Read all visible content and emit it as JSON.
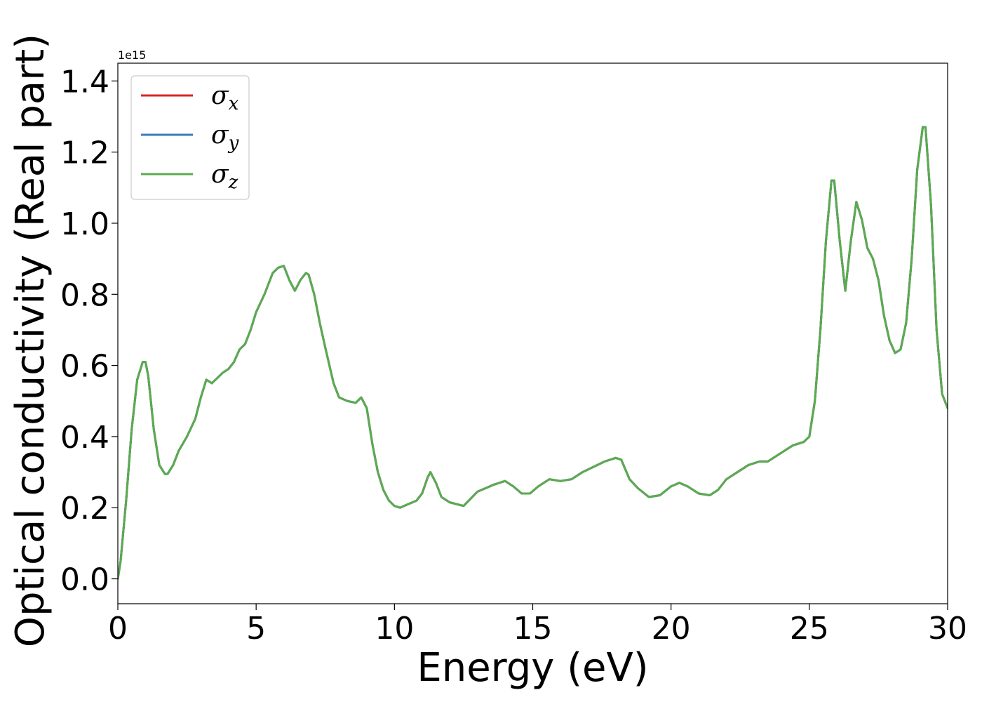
{
  "chart_data": {
    "type": "line",
    "title": "",
    "xlabel": "Energy (eV)",
    "ylabel": "Optical conductivity (Real part)",
    "y_offset_text": "1e15",
    "y_multiplier": 1000000000000000.0,
    "xlim": [
      0,
      30
    ],
    "ylim": [
      -0.07,
      1.45
    ],
    "x_ticks": [
      0,
      5,
      10,
      15,
      20,
      25,
      30
    ],
    "x_tick_labels": [
      "0",
      "5",
      "10",
      "15",
      "20",
      "25",
      "30"
    ],
    "y_ticks": [
      0.0,
      0.2,
      0.4,
      0.6,
      0.8,
      1.0,
      1.2,
      1.4
    ],
    "y_tick_labels": [
      "0.0",
      "0.2",
      "0.4",
      "0.6",
      "0.8",
      "1.0",
      "1.2",
      "1.4"
    ],
    "grid": false,
    "legend": {
      "placement": "top-left",
      "entries": [
        {
          "symbol": "σ",
          "sub": "x",
          "color": "#d62728"
        },
        {
          "symbol": "σ",
          "sub": "y",
          "color": "#3a7dbf"
        },
        {
          "symbol": "σ",
          "sub": "z",
          "color": "#5aab4f"
        }
      ]
    },
    "x": [
      0,
      0.1,
      0.3,
      0.5,
      0.7,
      0.9,
      1.0,
      1.1,
      1.3,
      1.5,
      1.7,
      1.8,
      2.0,
      2.2,
      2.5,
      2.8,
      3.0,
      3.2,
      3.4,
      3.6,
      3.8,
      4.0,
      4.2,
      4.4,
      4.6,
      4.8,
      5.0,
      5.3,
      5.6,
      5.8,
      6.0,
      6.2,
      6.4,
      6.6,
      6.8,
      6.9,
      7.1,
      7.3,
      7.5,
      7.8,
      8.0,
      8.3,
      8.6,
      8.8,
      9.0,
      9.2,
      9.4,
      9.6,
      9.8,
      10.0,
      10.2,
      10.5,
      10.8,
      11.0,
      11.2,
      11.3,
      11.5,
      11.7,
      12.0,
      12.5,
      13.0,
      13.3,
      13.6,
      14.0,
      14.3,
      14.6,
      14.9,
      15.2,
      15.6,
      16.0,
      16.4,
      16.8,
      17.2,
      17.6,
      18.0,
      18.2,
      18.5,
      18.8,
      19.2,
      19.6,
      20.0,
      20.3,
      20.6,
      21.0,
      21.4,
      21.7,
      22.0,
      22.4,
      22.8,
      23.2,
      23.5,
      23.8,
      24.1,
      24.4,
      24.8,
      25.0,
      25.2,
      25.4,
      25.6,
      25.8,
      25.9,
      26.1,
      26.3,
      26.5,
      26.7,
      26.9,
      27.1,
      27.3,
      27.5,
      27.7,
      27.9,
      28.1,
      28.3,
      28.5,
      28.7,
      28.9,
      29.1,
      29.2,
      29.4,
      29.6,
      29.8,
      30.0
    ],
    "series": [
      {
        "name": "σx",
        "color": "#d62728",
        "values": [
          0.0,
          0.05,
          0.22,
          0.42,
          0.56,
          0.61,
          0.61,
          0.57,
          0.42,
          0.32,
          0.295,
          0.295,
          0.32,
          0.36,
          0.4,
          0.45,
          0.51,
          0.56,
          0.55,
          0.565,
          0.58,
          0.59,
          0.61,
          0.645,
          0.66,
          0.7,
          0.75,
          0.8,
          0.86,
          0.875,
          0.88,
          0.84,
          0.81,
          0.84,
          0.86,
          0.855,
          0.8,
          0.72,
          0.65,
          0.55,
          0.51,
          0.5,
          0.495,
          0.51,
          0.48,
          0.38,
          0.3,
          0.25,
          0.22,
          0.205,
          0.2,
          0.21,
          0.22,
          0.24,
          0.285,
          0.3,
          0.27,
          0.23,
          0.215,
          0.205,
          0.245,
          0.255,
          0.265,
          0.275,
          0.26,
          0.24,
          0.24,
          0.26,
          0.28,
          0.275,
          0.28,
          0.3,
          0.315,
          0.33,
          0.34,
          0.335,
          0.28,
          0.255,
          0.23,
          0.235,
          0.26,
          0.27,
          0.26,
          0.24,
          0.235,
          0.25,
          0.28,
          0.3,
          0.32,
          0.33,
          0.33,
          0.345,
          0.36,
          0.375,
          0.385,
          0.4,
          0.5,
          0.7,
          0.95,
          1.12,
          1.12,
          0.95,
          0.81,
          0.95,
          1.06,
          1.01,
          0.93,
          0.9,
          0.84,
          0.74,
          0.67,
          0.635,
          0.645,
          0.72,
          0.9,
          1.15,
          1.27,
          1.27,
          1.05,
          0.7,
          0.52,
          0.48
        ]
      },
      {
        "name": "σy",
        "color": "#3a7dbf",
        "values": [
          0.0,
          0.05,
          0.22,
          0.42,
          0.56,
          0.61,
          0.61,
          0.57,
          0.42,
          0.32,
          0.295,
          0.295,
          0.32,
          0.36,
          0.4,
          0.45,
          0.51,
          0.56,
          0.55,
          0.565,
          0.58,
          0.59,
          0.61,
          0.645,
          0.66,
          0.7,
          0.75,
          0.8,
          0.86,
          0.875,
          0.88,
          0.84,
          0.81,
          0.84,
          0.86,
          0.855,
          0.8,
          0.72,
          0.65,
          0.55,
          0.51,
          0.5,
          0.495,
          0.51,
          0.48,
          0.38,
          0.3,
          0.25,
          0.22,
          0.205,
          0.2,
          0.21,
          0.22,
          0.24,
          0.285,
          0.3,
          0.27,
          0.23,
          0.215,
          0.205,
          0.245,
          0.255,
          0.265,
          0.275,
          0.26,
          0.24,
          0.24,
          0.26,
          0.28,
          0.275,
          0.28,
          0.3,
          0.315,
          0.33,
          0.34,
          0.335,
          0.28,
          0.255,
          0.23,
          0.235,
          0.26,
          0.27,
          0.26,
          0.24,
          0.235,
          0.25,
          0.28,
          0.3,
          0.32,
          0.33,
          0.33,
          0.345,
          0.36,
          0.375,
          0.385,
          0.4,
          0.5,
          0.7,
          0.95,
          1.12,
          1.12,
          0.95,
          0.81,
          0.95,
          1.06,
          1.01,
          0.93,
          0.9,
          0.84,
          0.74,
          0.67,
          0.635,
          0.645,
          0.72,
          0.9,
          1.15,
          1.27,
          1.27,
          1.05,
          0.7,
          0.52,
          0.48
        ]
      },
      {
        "name": "σz",
        "color": "#5aab4f",
        "values": [
          0.0,
          0.05,
          0.22,
          0.42,
          0.56,
          0.61,
          0.61,
          0.57,
          0.42,
          0.32,
          0.295,
          0.295,
          0.32,
          0.36,
          0.4,
          0.45,
          0.51,
          0.56,
          0.55,
          0.565,
          0.58,
          0.59,
          0.61,
          0.645,
          0.66,
          0.7,
          0.75,
          0.8,
          0.86,
          0.875,
          0.88,
          0.84,
          0.81,
          0.84,
          0.86,
          0.855,
          0.8,
          0.72,
          0.65,
          0.55,
          0.51,
          0.5,
          0.495,
          0.51,
          0.48,
          0.38,
          0.3,
          0.25,
          0.22,
          0.205,
          0.2,
          0.21,
          0.22,
          0.24,
          0.285,
          0.3,
          0.27,
          0.23,
          0.215,
          0.205,
          0.245,
          0.255,
          0.265,
          0.275,
          0.26,
          0.24,
          0.24,
          0.26,
          0.28,
          0.275,
          0.28,
          0.3,
          0.315,
          0.33,
          0.34,
          0.335,
          0.28,
          0.255,
          0.23,
          0.235,
          0.26,
          0.27,
          0.26,
          0.24,
          0.235,
          0.25,
          0.28,
          0.3,
          0.32,
          0.33,
          0.33,
          0.345,
          0.36,
          0.375,
          0.385,
          0.4,
          0.5,
          0.7,
          0.95,
          1.12,
          1.12,
          0.95,
          0.81,
          0.95,
          1.06,
          1.01,
          0.93,
          0.9,
          0.84,
          0.74,
          0.67,
          0.635,
          0.645,
          0.72,
          0.9,
          1.15,
          1.27,
          1.27,
          1.05,
          0.7,
          0.52,
          0.48
        ]
      }
    ]
  }
}
